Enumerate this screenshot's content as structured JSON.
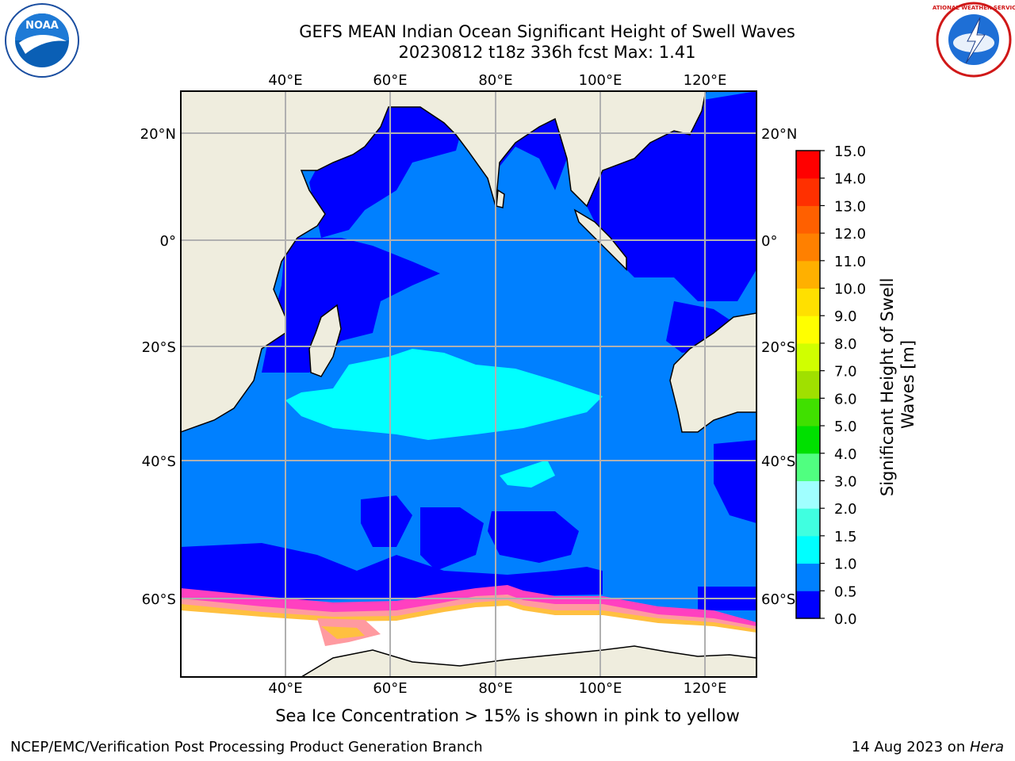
{
  "title": {
    "line1": "GEFS MEAN Indian Ocean Significant Height of Swell Waves",
    "line2": "20230812 t18z 336h fcst   Max: 1.41"
  },
  "map": {
    "lon_labels": [
      "40°E",
      "60°E",
      "80°E",
      "100°E",
      "120°E"
    ],
    "lat_labels": [
      "20°N",
      "0°",
      "20°S",
      "40°S",
      "60°S"
    ],
    "colors": {
      "land": "#efedde",
      "ice": "#ffffff",
      "ocean_dark": "#0000ff",
      "ocean_mid": "#0080ff",
      "cyan": "#00ffff",
      "grid": "#b0b0b0"
    }
  },
  "colorbar": {
    "label": "Significant Height of Swell\nWaves [m]",
    "ticks": [
      "0.0",
      "0.5",
      "1.0",
      "1.5",
      "2.0",
      "3.0",
      "4.0",
      "5.0",
      "6.0",
      "7.0",
      "8.0",
      "9.0",
      "10.0",
      "11.0",
      "12.0",
      "13.0",
      "14.0",
      "15.0"
    ],
    "colors": [
      "#0000ff",
      "#0080ff",
      "#00ffff",
      "#40ffe0",
      "#a0ffff",
      "#50ff80",
      "#00e000",
      "#40e000",
      "#a0e000",
      "#d0ff00",
      "#ffff00",
      "#ffe000",
      "#ffb000",
      "#ff8000",
      "#ff6000",
      "#ff3000",
      "#ff0000"
    ]
  },
  "footer": {
    "note": "Sea Ice Concentration > 15% is shown in pink to yellow",
    "credit_left": "NCEP/EMC/Verification Post Processing Product Generation Branch",
    "date": "14 Aug 2023 on ",
    "host": "Hera"
  },
  "logos": {
    "noaa_text": "NOAA",
    "nws_text": "NATIONAL WEATHER SERVICE"
  }
}
